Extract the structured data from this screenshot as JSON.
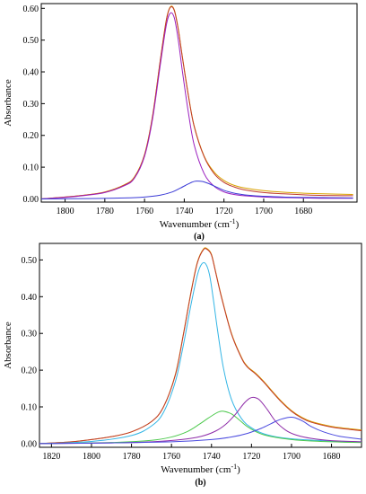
{
  "chart_data": [
    {
      "type": "line",
      "panel_label": "(a)",
      "xlabel": "Wavenumber (cm",
      "xlabel_sup": "-1",
      "xlabel_close": ")",
      "ylabel": "Absorbance",
      "xlim": [
        1812,
        1653
      ],
      "ylim": [
        -0.01,
        0.615
      ],
      "xticks": [
        1800,
        1780,
        1760,
        1740,
        1720,
        1700,
        1680
      ],
      "yticks": [
        0.0,
        0.1,
        0.2,
        0.3,
        0.4,
        0.5,
        0.6
      ],
      "ytick_labels": [
        "0.00",
        "0.10",
        "0.20",
        "0.30",
        "0.40",
        "0.50",
        "0.60"
      ],
      "grid": false,
      "series": [
        {
          "color": "#d9a100",
          "x": [
            1812,
            1800,
            1790,
            1780,
            1770,
            1765,
            1760,
            1756,
            1752,
            1749,
            1747,
            1745,
            1743,
            1741,
            1738,
            1735,
            1730,
            1725,
            1720,
            1715,
            1710,
            1700,
            1690,
            1680,
            1670,
            1655
          ],
          "y": [
            0.0,
            0.006,
            0.012,
            0.022,
            0.045,
            0.07,
            0.14,
            0.26,
            0.44,
            0.565,
            0.605,
            0.595,
            0.535,
            0.45,
            0.33,
            0.23,
            0.135,
            0.085,
            0.058,
            0.043,
            0.035,
            0.026,
            0.021,
            0.018,
            0.016,
            0.014
          ]
        },
        {
          "color": "#c0392b",
          "x": [
            1812,
            1800,
            1790,
            1780,
            1770,
            1765,
            1760,
            1756,
            1752,
            1749,
            1747,
            1745,
            1743,
            1741,
            1738,
            1735,
            1730,
            1725,
            1720,
            1715,
            1710,
            1700,
            1690,
            1680,
            1670,
            1655
          ],
          "y": [
            0.0,
            0.006,
            0.012,
            0.021,
            0.044,
            0.068,
            0.138,
            0.258,
            0.438,
            0.563,
            0.603,
            0.593,
            0.533,
            0.448,
            0.328,
            0.228,
            0.133,
            0.08,
            0.052,
            0.038,
            0.029,
            0.02,
            0.016,
            0.013,
            0.011,
            0.01
          ]
        },
        {
          "color": "#9b1fbf",
          "x": [
            1812,
            1800,
            1790,
            1780,
            1770,
            1765,
            1760,
            1756,
            1752,
            1749,
            1747,
            1745,
            1743,
            1741,
            1738,
            1735,
            1730,
            1725,
            1720,
            1715,
            1710,
            1700,
            1690,
            1680,
            1670,
            1655
          ],
          "y": [
            0.0,
            0.005,
            0.011,
            0.02,
            0.042,
            0.066,
            0.134,
            0.25,
            0.425,
            0.548,
            0.585,
            0.57,
            0.5,
            0.405,
            0.275,
            0.17,
            0.08,
            0.04,
            0.022,
            0.014,
            0.01,
            0.006,
            0.004,
            0.003,
            0.002,
            0.002
          ]
        },
        {
          "color": "#3a3ad6",
          "x": [
            1812,
            1790,
            1770,
            1760,
            1752,
            1746,
            1742,
            1738,
            1736,
            1734,
            1731,
            1728,
            1724,
            1720,
            1714,
            1705,
            1690,
            1670,
            1655
          ],
          "y": [
            0.0,
            0.001,
            0.003,
            0.006,
            0.012,
            0.022,
            0.034,
            0.047,
            0.053,
            0.056,
            0.055,
            0.049,
            0.038,
            0.027,
            0.017,
            0.01,
            0.006,
            0.004,
            0.003
          ]
        }
      ]
    },
    {
      "type": "line",
      "panel_label": "(b)",
      "xlabel": "Wavenumber (cm",
      "xlabel_sup": "-1",
      "xlabel_close": ")",
      "ylabel": "Absorbance",
      "xlim": [
        1826,
        1665
      ],
      "ylim": [
        -0.01,
        0.545
      ],
      "xticks": [
        1820,
        1800,
        1780,
        1760,
        1740,
        1720,
        1700,
        1680
      ],
      "yticks": [
        0.0,
        0.1,
        0.2,
        0.3,
        0.4,
        0.5
      ],
      "ytick_labels": [
        "0.00",
        "0.10",
        "0.20",
        "0.30",
        "0.40",
        "0.50"
      ],
      "grid": false,
      "series": [
        {
          "color": "#d9a100",
          "x": [
            1826,
            1810,
            1800,
            1790,
            1780,
            1770,
            1764,
            1758,
            1754,
            1750,
            1747,
            1744,
            1742,
            1740,
            1738,
            1735,
            1730,
            1725,
            1722,
            1718,
            1714,
            1710,
            1705,
            1700,
            1695,
            1690,
            1680,
            1670,
            1665
          ],
          "y": [
            0.0,
            0.005,
            0.011,
            0.019,
            0.032,
            0.06,
            0.1,
            0.19,
            0.3,
            0.42,
            0.495,
            0.53,
            0.53,
            0.515,
            0.47,
            0.4,
            0.3,
            0.235,
            0.21,
            0.192,
            0.17,
            0.145,
            0.115,
            0.09,
            0.072,
            0.06,
            0.047,
            0.04,
            0.037
          ]
        },
        {
          "color": "#c0392b",
          "x": [
            1826,
            1810,
            1800,
            1790,
            1780,
            1770,
            1764,
            1758,
            1754,
            1750,
            1747,
            1744,
            1742,
            1740,
            1738,
            1735,
            1730,
            1725,
            1722,
            1718,
            1714,
            1710,
            1705,
            1700,
            1695,
            1690,
            1680,
            1670,
            1665
          ],
          "y": [
            0.0,
            0.005,
            0.011,
            0.019,
            0.032,
            0.06,
            0.1,
            0.188,
            0.298,
            0.418,
            0.493,
            0.528,
            0.528,
            0.513,
            0.468,
            0.398,
            0.298,
            0.233,
            0.208,
            0.19,
            0.168,
            0.143,
            0.113,
            0.088,
            0.07,
            0.058,
            0.045,
            0.038,
            0.035
          ]
        },
        {
          "color": "#33b5e5",
          "x": [
            1826,
            1800,
            1780,
            1770,
            1764,
            1758,
            1754,
            1750,
            1747,
            1745,
            1743,
            1741,
            1739,
            1737,
            1734,
            1730,
            1725,
            1720,
            1714,
            1706,
            1695,
            1680,
            1665
          ],
          "y": [
            0.0,
            0.006,
            0.022,
            0.048,
            0.085,
            0.17,
            0.27,
            0.385,
            0.46,
            0.488,
            0.49,
            0.46,
            0.39,
            0.31,
            0.205,
            0.12,
            0.068,
            0.043,
            0.027,
            0.017,
            0.011,
            0.007,
            0.005
          ]
        },
        {
          "color": "#4cc94c",
          "x": [
            1826,
            1790,
            1770,
            1760,
            1752,
            1746,
            1742,
            1738,
            1736,
            1734,
            1730,
            1726,
            1722,
            1716,
            1710,
            1700,
            1690,
            1675,
            1665
          ],
          "y": [
            0.0,
            0.003,
            0.009,
            0.018,
            0.033,
            0.053,
            0.068,
            0.082,
            0.087,
            0.088,
            0.081,
            0.064,
            0.046,
            0.028,
            0.019,
            0.011,
            0.007,
            0.004,
            0.003
          ]
        },
        {
          "color": "#8e2ca8",
          "x": [
            1826,
            1790,
            1770,
            1755,
            1745,
            1738,
            1733,
            1728,
            1724,
            1721,
            1719,
            1716,
            1712,
            1708,
            1703,
            1698,
            1690,
            1680,
            1665
          ],
          "y": [
            0.0,
            0.002,
            0.005,
            0.011,
            0.02,
            0.034,
            0.052,
            0.08,
            0.108,
            0.123,
            0.126,
            0.119,
            0.092,
            0.061,
            0.037,
            0.024,
            0.014,
            0.008,
            0.005
          ]
        },
        {
          "color": "#4a4adf",
          "x": [
            1826,
            1790,
            1760,
            1740,
            1730,
            1722,
            1715,
            1710,
            1706,
            1702,
            1700,
            1698,
            1694,
            1690,
            1684,
            1676,
            1665
          ],
          "y": [
            0.0,
            0.002,
            0.005,
            0.011,
            0.018,
            0.028,
            0.042,
            0.055,
            0.065,
            0.071,
            0.072,
            0.07,
            0.06,
            0.046,
            0.032,
            0.02,
            0.012
          ]
        }
      ]
    }
  ]
}
